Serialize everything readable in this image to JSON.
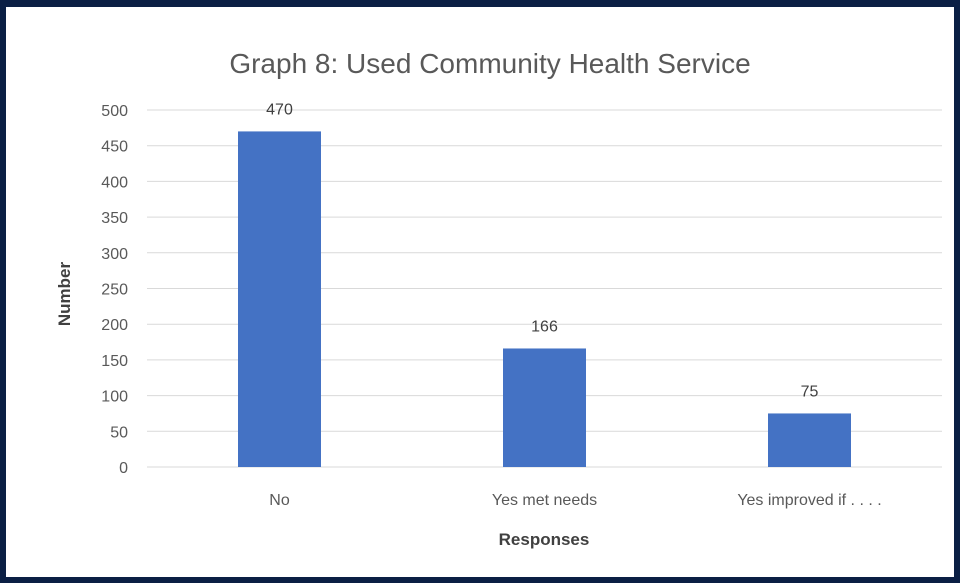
{
  "colors": {
    "bar": "#4472c4",
    "border": "#0b1f44"
  },
  "chart_data": {
    "type": "bar",
    "title": "Graph 8: Used Community Health Service",
    "xlabel": "Responses",
    "ylabel": "Number",
    "categories": [
      "No",
      "Yes met needs",
      "Yes improved if . . . ."
    ],
    "values": [
      470,
      166,
      75
    ],
    "data_labels": [
      "470",
      "166",
      "75"
    ],
    "ylim": [
      0,
      500
    ],
    "y_ticks": [
      "0",
      "50",
      "100",
      "150",
      "200",
      "250",
      "300",
      "350",
      "400",
      "450",
      "500"
    ],
    "grid": true,
    "legend": "none"
  }
}
